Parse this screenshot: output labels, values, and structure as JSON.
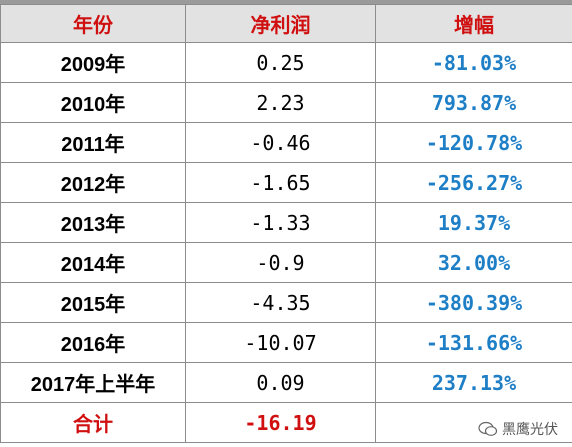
{
  "table": {
    "header": [
      "年份",
      "净利润",
      "增幅"
    ],
    "rows": [
      [
        "2009年",
        "0.25",
        "-81.03%"
      ],
      [
        "2010年",
        "2.23",
        "793.87%"
      ],
      [
        "2011年",
        "-0.46",
        "-120.78%"
      ],
      [
        "2012年",
        "-1.65",
        "-256.27%"
      ],
      [
        "2013年",
        "-1.33",
        "19.37%"
      ],
      [
        "2014年",
        "-0.9",
        "32.00%"
      ],
      [
        "2015年",
        "-4.35",
        "-380.39%"
      ],
      [
        "2016年",
        "-10.07",
        "-131.66%"
      ],
      [
        "2017年上半年",
        "0.09",
        "237.13%"
      ]
    ],
    "total": [
      "合计",
      "-16.19"
    ]
  },
  "watermark": "黑鹰光伏"
}
